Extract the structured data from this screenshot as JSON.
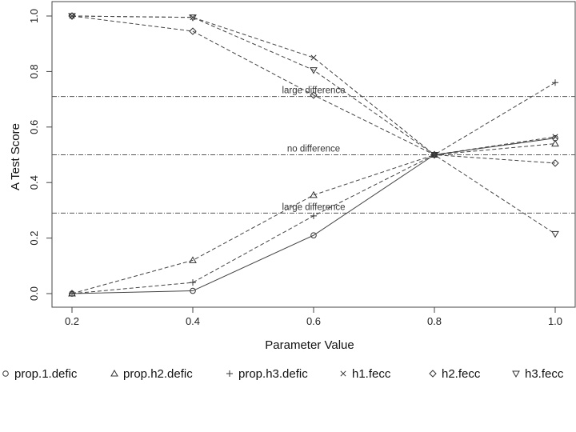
{
  "chart_data": {
    "type": "line",
    "title": "",
    "xlabel": "Parameter Value",
    "ylabel": "A Test Score",
    "x": [
      0.2,
      0.4,
      0.6,
      0.8,
      1.0
    ],
    "x_ticks": [
      "0.2",
      "0.4",
      "0.6",
      "0.8",
      "1.0"
    ],
    "y_ticks": [
      "0.0",
      "0.2",
      "0.4",
      "0.6",
      "0.8",
      "1.0"
    ],
    "xlim": [
      0.2,
      1.0
    ],
    "ylim": [
      0.0,
      1.0
    ],
    "grid": false,
    "legend_position": "bottom",
    "reference_lines": [
      {
        "y": 0.71,
        "label": "large difference"
      },
      {
        "y": 0.5,
        "label": "no difference"
      },
      {
        "y": 0.29,
        "label": "large difference"
      }
    ],
    "series": [
      {
        "name": "prop.1.defic",
        "marker": "circle",
        "line": "solid",
        "values": [
          0.0,
          0.01,
          0.21,
          0.5,
          0.56
        ]
      },
      {
        "name": "prop.h2.defic",
        "marker": "triangle-up",
        "line": "dashed",
        "values": [
          0.0,
          0.12,
          0.355,
          0.5,
          0.54
        ]
      },
      {
        "name": "prop.h3.defic",
        "marker": "plus",
        "line": "dashed",
        "values": [
          0.0,
          0.04,
          0.28,
          0.5,
          0.76
        ]
      },
      {
        "name": "h1.fecc",
        "marker": "cross",
        "line": "dashed",
        "values": [
          1.0,
          0.995,
          0.85,
          0.5,
          0.565
        ]
      },
      {
        "name": "h2.fecc",
        "marker": "diamond",
        "line": "dashed",
        "values": [
          1.0,
          0.945,
          0.715,
          0.5,
          0.47
        ]
      },
      {
        "name": "h3.fecc",
        "marker": "triangle-down",
        "line": "dashed",
        "values": [
          1.0,
          0.995,
          0.805,
          0.5,
          0.215
        ]
      }
    ]
  }
}
